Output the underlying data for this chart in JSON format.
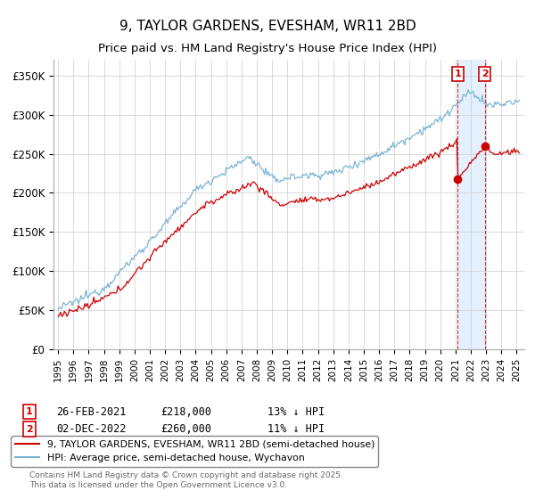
{
  "title": "9, TAYLOR GARDENS, EVESHAM, WR11 2BD",
  "subtitle": "Price paid vs. HM Land Registry's House Price Index (HPI)",
  "ylabel_ticks": [
    "£0",
    "£50K",
    "£100K",
    "£150K",
    "£200K",
    "£250K",
    "£300K",
    "£350K"
  ],
  "ytick_vals": [
    0,
    50000,
    100000,
    150000,
    200000,
    250000,
    300000,
    350000
  ],
  "ylim": [
    0,
    370000
  ],
  "xlim_start": 1994.7,
  "xlim_end": 2025.5,
  "hpi_color": "#7ab3d4",
  "price_color": "#cc0000",
  "shade_color": "#ddeeff",
  "sale1_year": 2021.15,
  "sale2_year": 2022.92,
  "sale1_price": 218000,
  "sale2_price": 260000,
  "sale1_date": "26-FEB-2021",
  "sale2_date": "02-DEC-2022",
  "sale1_pct": "13%",
  "sale2_pct": "11%",
  "legend_label1": "9, TAYLOR GARDENS, EVESHAM, WR11 2BD (semi-detached house)",
  "legend_label2": "HPI: Average price, semi-detached house, Wychavon",
  "footnote": "Contains HM Land Registry data © Crown copyright and database right 2025.\nThis data is licensed under the Open Government Licence v3.0.",
  "background_color": "#ffffff",
  "grid_color": "#cccccc"
}
